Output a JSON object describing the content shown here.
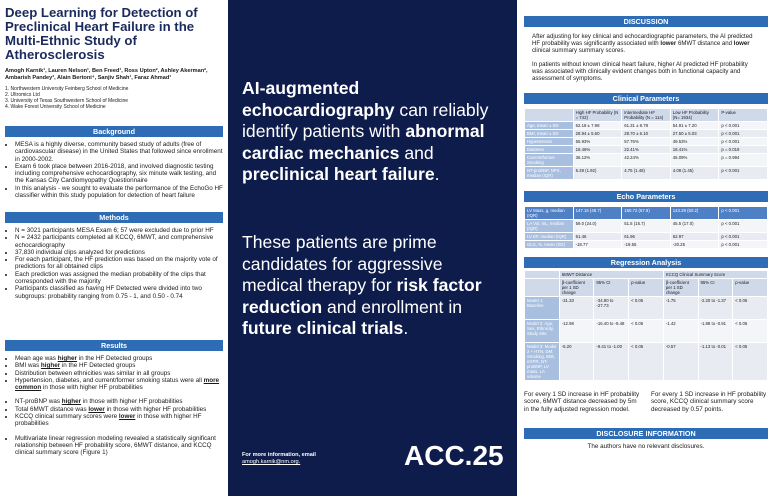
{
  "title": "Deep Learning for Detection of Preclinical Heart Failure in the Multi-Ethnic Study of Atherosclerosis",
  "authors": "Amogh Karnik¹, Lauren Nelson¹, Ben Freed¹, Ross Upton², Ashley Akerman², Ambarish Pandey³, Alain Bertoni⁴, Sanjiv Shah¹, Faraz Ahmad¹",
  "affiliations": [
    "1. Northwestern University Feinberg School of Medicine",
    "2. Ultromics Ltd",
    "3. University of Texas Southwestern School of Medicine",
    "4. Wake Forest University School of Medicine"
  ],
  "sections": [
    {
      "heading": "Background",
      "groups": [
        [
          [
            "MESA is a highly diverse, community based study of adults (free of cardiovascular disease) in the United States that followed since enrollment in 2000-2002."
          ],
          [
            "Exam 6 took place between 2016-2018, and involved diagnostic testing including comprehensive echocardiography, six minute walk testing, and the Kansas City Cardiomyopathy Questionnaire"
          ],
          [
            "In this analysis - we sought to evaluate the performance of the EchoGo HF classifier within this study population for detection of heart failure"
          ]
        ]
      ]
    },
    {
      "heading": "Methods",
      "groups": [
        [
          [
            "N = 3021 participants MESA Exam 6; 57 were excluded due to prior HF"
          ],
          [
            "N = 2432 participants completed all KCCQ, 6MWT, and comprehensive echocardiography"
          ],
          [
            "37,830 individual clips analyzed for predictions"
          ],
          [
            "For each participant, the HF prediction was based on the majority vote of predictions for all obtained clips"
          ],
          [
            "Each prediction was assigned the median probability of the clips that corresponded with the majority"
          ],
          [
            "Participants classified as having HF Detected were divided into two subgroups: probability ranging from 0.75 - 1, and 0.50 - 0.74"
          ]
        ]
      ]
    },
    {
      "heading": "Results",
      "groups": [
        [
          [
            "Mean age was ",
            {
              "text": "higher",
              "style": "bold-underline"
            },
            " in the HF Detected groups"
          ],
          [
            "BMI was ",
            {
              "text": "higher",
              "style": "bold-underline"
            },
            " in the HF Detected groups"
          ],
          [
            "Distribution between ethnicities was similar in all groups"
          ],
          [
            "Hypertension, diabetes, and current/former smoking status were all ",
            {
              "text": "more common",
              "style": "bold-underline"
            },
            " in those with higher HF probabilities"
          ]
        ],
        [
          [
            "NT-proBNP was ",
            {
              "text": "higher",
              "style": "bold-underline"
            },
            " in those with higher HF probabilities"
          ],
          [
            "Total 6MWT distance was ",
            {
              "text": "lower",
              "style": "bold-underline"
            },
            " in those with higher HF probabilities"
          ],
          [
            "KCCQ clinical summary scores were ",
            {
              "text": "lower",
              "style": "bold-underline"
            },
            " in those with higher HF probabilities"
          ]
        ],
        [
          [
            "Multivariate linear regression modeling revealed a statistically significant relationship between HF probability score, 6MWT distance, and KCCQ clinical summary score (Figure 1)"
          ]
        ]
      ]
    }
  ],
  "key_messages": [
    [
      {
        "text": "AI-augmented echocardiography",
        "style": "bold"
      },
      " can reliably identify patients with ",
      {
        "text": "abnormal cardiac mechanics",
        "style": "bold"
      },
      " and ",
      {
        "text": "preclinical heart failure",
        "style": "bold"
      },
      "."
    ],
    [
      "These patients are prime candidates for aggressive medical therapy for ",
      {
        "text": "risk factor reduction",
        "style": "bold"
      },
      " and enrollment in ",
      {
        "text": "future clinical trials",
        "style": "bold"
      },
      "."
    ]
  ],
  "contact": {
    "text": "For more information, email",
    "email": "amogh.karnik@nm.org."
  },
  "logo": "ACC.25",
  "discussion": {
    "heading": "DISCUSSION",
    "paragraphs": [
      [
        "After adjusting for key clinical and echocardiographic parameters, the AI predicted HF probability was significantly associated with ",
        {
          "text": "lower",
          "style": "bold"
        },
        " 6MWT distance and ",
        {
          "text": "lower",
          "style": "bold"
        },
        " clinical summary summary scores."
      ],
      [
        "In patients without known clinical heart failure, higher AI predicted HF probability was associated with clinically evident changes both in functional capacity and assessment of symptoms."
      ]
    ]
  },
  "clinical_parameters": {
    "heading": "Clinical Parameters",
    "columns": [
      "High HF Probability (N = 742)",
      "Intermediate HF Probability (N = 114)",
      "Low HF Probability (N= 1934)",
      "P-value"
    ],
    "rows": [
      [
        "Age, mean ± SD",
        "62.18 ± 7.98",
        "61.31 ± 8.78",
        "54.91 ± 7.20",
        "p < 0.001"
      ],
      [
        "BMI, mean ± SD",
        "28.94 ± 5.60",
        "28.70 ± 6.10",
        "27.50 ± 5.03",
        "p < 0.001"
      ],
      [
        "Hypertension",
        "55.93%",
        "57.76%",
        "49.53%",
        "p < 0.001"
      ],
      [
        "Diabetes",
        "18.46%",
        "22.41%",
        "18.41%",
        "p = 0.019"
      ],
      [
        "Current/former Smoking",
        "36.12%",
        "42.24%",
        "45.09%",
        "p = 0.994"
      ],
      [
        "NT-proBNP, NPX, median (IQR)",
        "5.39 (1.92)",
        "4.75 (1.48)",
        "4.08 (1.45)",
        "p < 0.001"
      ]
    ]
  },
  "echo_parameters": {
    "heading": "Echo Parameters",
    "rows": [
      [
        "LV Mass, g, median (IQR)",
        "147.16 (48.7)",
        "150.72 (67.8)",
        "143.29 (50.2)",
        "p < 0.001"
      ],
      [
        "LA Vol, mL, median (IQR)",
        "59.0 (24.0)",
        "51.5 (15.7)",
        "45.5 (17.0)",
        "p < 0.001"
      ],
      [
        "LV EF, median (IQR)",
        "61.46",
        "61.96",
        "62.97",
        "p < 0.001"
      ],
      [
        "GLS, %, mean (SD)",
        "-18.77",
        "-19.55",
        "-20.25",
        "p < 0.001"
      ]
    ]
  },
  "regression_analysis": {
    "heading": "Regression Analysis",
    "groups": [
      "6MWT Distance",
      "KCCQ Clinical Summary Score"
    ],
    "columns": [
      "β-coefficient per 1 SD change",
      "95% CI",
      "p-value",
      "β-coefficient per 1 SD change",
      "95% CI",
      "p-value"
    ],
    "rows": [
      [
        "Model 1: Baseline",
        "-31.33",
        "-34.90 to -27.73",
        "< 0.05",
        "-1.75",
        "-2.20 to -1.37",
        "< 0.05"
      ],
      [
        "Model 2: Age, Sex, Ethnicity, Study Site",
        "-12.98",
        "-16.40 to -9.48",
        "< 0.05",
        "-1.42",
        "-1.88 to -0.91",
        "< 0.05"
      ],
      [
        "Model 3: Model 2 + HTN, DM, Smoking, BMI, eGFR, NT-proBNP, LV mass, LA volume",
        "-5.20",
        "-9.41 to -1.00",
        "< 0.05",
        "-0.57",
        "-1.13 to -0.01",
        "< 0.05"
      ]
    ],
    "notes": [
      "For every 1 SD increase in HF probability score, 6MWT distance decreased by 5m in the fully adjusted regression model.",
      "For every 1 SD increase in HF probability score, KCCQ clinical summary score decreased by 0.57 points."
    ]
  },
  "disclosure": {
    "heading": "DISCLOSURE INFORMATION",
    "text": "The authors have no relevant disclosures."
  }
}
